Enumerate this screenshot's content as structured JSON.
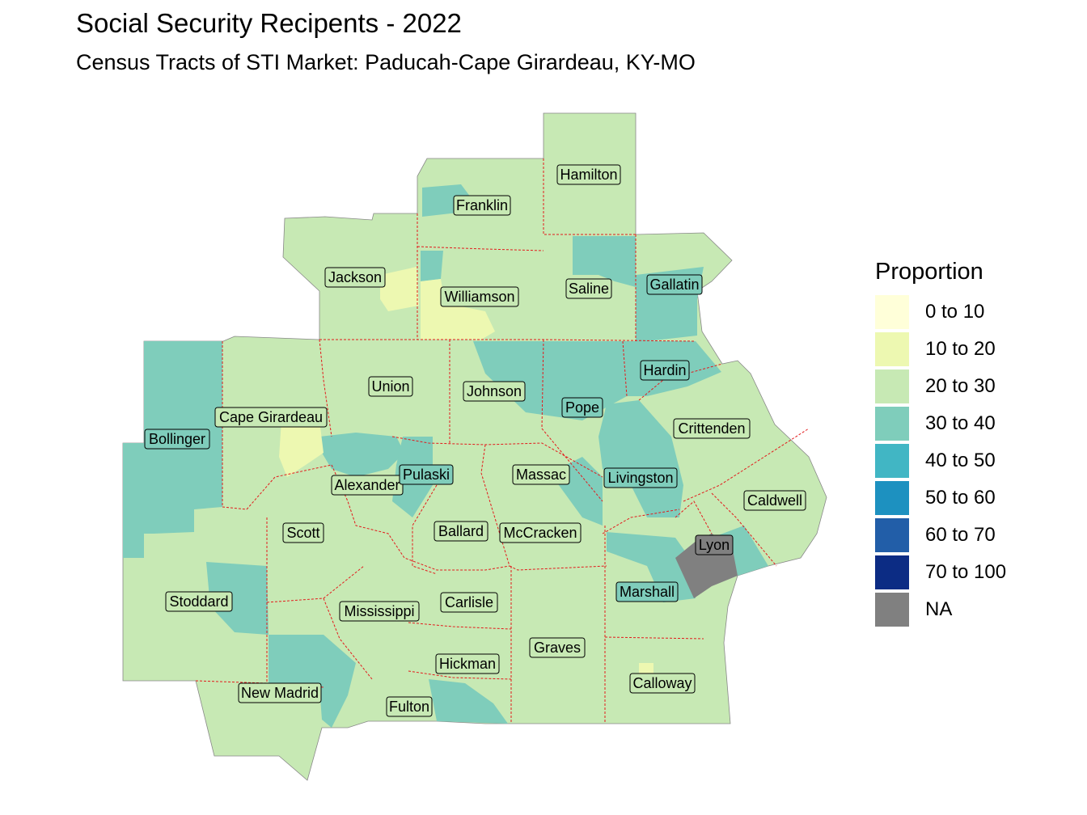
{
  "title": "Social Security Recipents - 2022",
  "subtitle": "Census Tracts of STI Market: Paducah-Cape Girardeau, KY-MO",
  "legend": {
    "title": "Proportion",
    "items": [
      {
        "label": "0 to 10",
        "color": "#ffffd9"
      },
      {
        "label": "10 to 20",
        "color": "#edf8b1"
      },
      {
        "label": "20 to 30",
        "color": "#c7e9b4"
      },
      {
        "label": "30 to 40",
        "color": "#7fcdbb"
      },
      {
        "label": "40 to 50",
        "color": "#41b6c4"
      },
      {
        "label": "50 to 60",
        "color": "#1d91c0"
      },
      {
        "label": "60 to 70",
        "color": "#225ea8"
      },
      {
        "label": "70 to 100",
        "color": "#0c2c84"
      },
      {
        "label": "NA",
        "color": "#808080"
      }
    ]
  },
  "border_color": "#e31a1c",
  "counties": [
    {
      "name": "Hamilton",
      "class": "20 to 30"
    },
    {
      "name": "Franklin",
      "class": "20 to 30"
    },
    {
      "name": "Jackson",
      "class": "20 to 30"
    },
    {
      "name": "Williamson",
      "class": "20 to 30"
    },
    {
      "name": "Saline",
      "class": "20 to 30"
    },
    {
      "name": "Gallatin",
      "class": "30 to 40"
    },
    {
      "name": "Union",
      "class": "20 to 30"
    },
    {
      "name": "Johnson",
      "class": "20 to 30"
    },
    {
      "name": "Pope",
      "class": "30 to 40"
    },
    {
      "name": "Hardin",
      "class": "30 to 40"
    },
    {
      "name": "Bollinger",
      "class": "30 to 40"
    },
    {
      "name": "Cape Girardeau",
      "class": "20 to 30"
    },
    {
      "name": "Crittenden",
      "class": "20 to 30"
    },
    {
      "name": "Alexander",
      "class": "30 to 40"
    },
    {
      "name": "Pulaski",
      "class": "30 to 40"
    },
    {
      "name": "Massac",
      "class": "20 to 30"
    },
    {
      "name": "Livingston",
      "class": "30 to 40"
    },
    {
      "name": "Caldwell",
      "class": "20 to 30"
    },
    {
      "name": "Scott",
      "class": "20 to 30"
    },
    {
      "name": "Ballard",
      "class": "20 to 30"
    },
    {
      "name": "McCracken",
      "class": "20 to 30"
    },
    {
      "name": "Lyon",
      "class": "NA"
    },
    {
      "name": "Stoddard",
      "class": "20 to 30"
    },
    {
      "name": "Marshall",
      "class": "20 to 30"
    },
    {
      "name": "Mississippi",
      "class": "20 to 30"
    },
    {
      "name": "Carlisle",
      "class": "20 to 30"
    },
    {
      "name": "Graves",
      "class": "20 to 30"
    },
    {
      "name": "Hickman",
      "class": "20 to 30"
    },
    {
      "name": "Calloway",
      "class": "20 to 30"
    },
    {
      "name": "New Madrid",
      "class": "20 to 30"
    },
    {
      "name": "Fulton",
      "class": "20 to 30"
    }
  ]
}
